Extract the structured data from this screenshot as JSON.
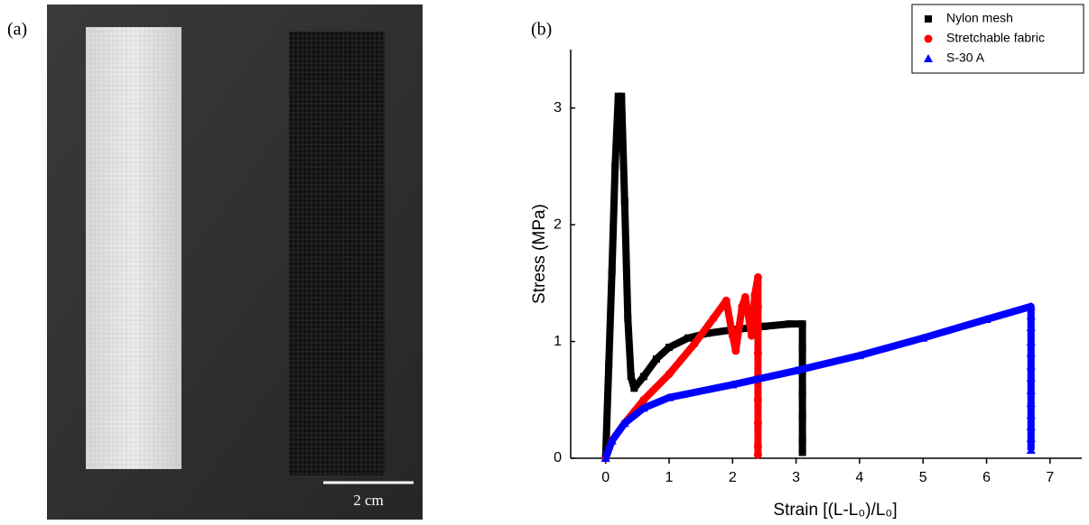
{
  "figure": {
    "panel_a_label": "(a)",
    "scale_bar_label": "2 cm"
  },
  "chart_data": {
    "type": "scatter",
    "panel_label": "(b)",
    "x_label": "Strain [(L-L₀)/L₀]",
    "y_label": "Stress (MPa)",
    "xlim": [
      -0.55,
      7.5
    ],
    "ylim": [
      0,
      3.5
    ],
    "xticks": [
      0,
      1,
      2,
      3,
      4,
      5,
      6,
      7
    ],
    "yticks": [
      0,
      1,
      2,
      3
    ],
    "legend": "upper right",
    "series": [
      {
        "name": "Nylon mesh",
        "color": "#000000",
        "marker": "square",
        "x": [
          0,
          0.05,
          0.1,
          0.15,
          0.2,
          0.25,
          0.3,
          0.35,
          0.4,
          0.45,
          0.6,
          0.8,
          1.0,
          1.3,
          1.6,
          2.0,
          2.5,
          2.9,
          3.1,
          3.1,
          3.1,
          3.1,
          3.1,
          3.1,
          3.1
        ],
        "values": [
          0,
          0.8,
          1.6,
          2.5,
          3.1,
          3.1,
          2.2,
          1.2,
          0.7,
          0.6,
          0.7,
          0.85,
          0.95,
          1.03,
          1.07,
          1.1,
          1.13,
          1.15,
          1.15,
          0.95,
          0.75,
          0.55,
          0.35,
          0.15,
          0.05
        ]
      },
      {
        "name": "Stretchable fabric",
        "color": "#ff0000",
        "marker": "circle",
        "x": [
          0,
          0.1,
          0.3,
          0.6,
          1.0,
          1.4,
          1.7,
          1.9,
          2.0,
          2.05,
          2.15,
          2.2,
          2.3,
          2.35,
          2.4,
          2.4,
          2.4,
          2.4,
          2.4,
          2.4,
          2.4,
          2.4,
          2.4
        ],
        "values": [
          0,
          0.15,
          0.3,
          0.5,
          0.72,
          0.98,
          1.2,
          1.35,
          1.05,
          0.92,
          1.3,
          1.38,
          1.05,
          1.4,
          1.55,
          1.3,
          1.1,
          0.9,
          0.7,
          0.5,
          0.3,
          0.1,
          0.03
        ]
      },
      {
        "name": "S-30 A",
        "color": "#0000ff",
        "marker": "triangle",
        "x": [
          0,
          0.1,
          0.3,
          0.6,
          1,
          2,
          3,
          4,
          5,
          6,
          6.7,
          6.7,
          6.7,
          6.7,
          6.7,
          6.7,
          6.7,
          6.7,
          6.7,
          6.7,
          6.7,
          6.7,
          6.7
        ],
        "values": [
          0,
          0.15,
          0.3,
          0.43,
          0.52,
          0.63,
          0.75,
          0.88,
          1.03,
          1.19,
          1.3,
          1.22,
          1.12,
          1.0,
          0.9,
          0.79,
          0.69,
          0.58,
          0.47,
          0.37,
          0.27,
          0.17,
          0.07
        ]
      }
    ]
  }
}
